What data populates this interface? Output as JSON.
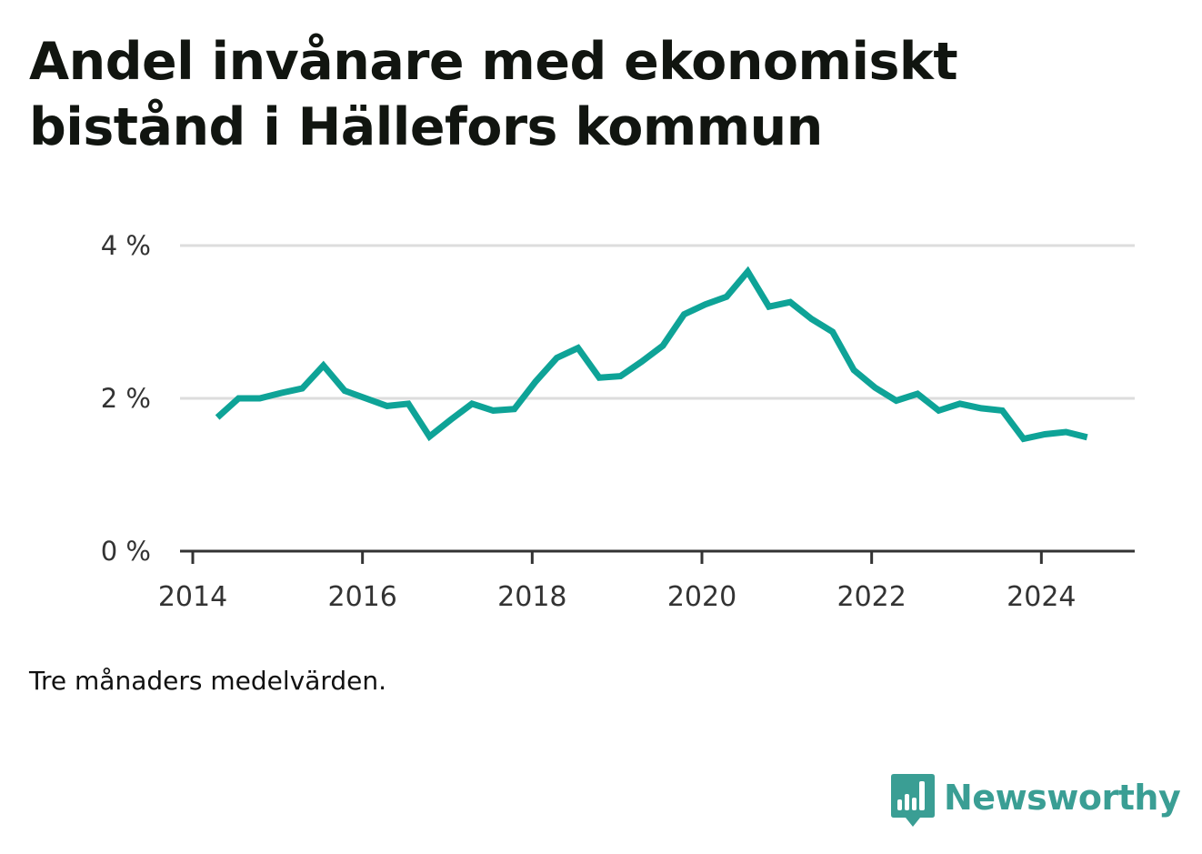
{
  "title": "Andel invånare med ekonomiskt bistånd i Hällefors kommun",
  "note": "Tre månaders medelvärden.",
  "brand": {
    "name": "Newsworthy",
    "icon": "bar-chart-speech-bubble-icon",
    "color": "#3a9e94"
  },
  "chart_data": {
    "type": "line",
    "line_color": "#0ea397",
    "grid": true,
    "x_unit": "year",
    "xlim": [
      2013.85,
      2025.1
    ],
    "ylim": [
      0,
      4
    ],
    "x_ticks": [
      2014,
      2016,
      2018,
      2020,
      2022,
      2024
    ],
    "x_tick_labels": [
      "2014",
      "2016",
      "2018",
      "2020",
      "2022",
      "2024"
    ],
    "y_ticks": [
      0,
      2,
      4
    ],
    "y_tick_labels": [
      "0 %",
      "2 %",
      "4 %"
    ],
    "series": [
      {
        "x": [
          2014.29,
          2014.54,
          2014.79,
          2015.04,
          2015.29,
          2015.54,
          2015.79,
          2016.04,
          2016.29,
          2016.54,
          2016.79,
          2017.04,
          2017.29,
          2017.54,
          2017.79,
          2018.04,
          2018.29,
          2018.54,
          2018.79,
          2019.04,
          2019.29,
          2019.54,
          2019.79,
          2020.04,
          2020.29,
          2020.54,
          2020.79,
          2021.04,
          2021.29,
          2021.54,
          2021.79,
          2022.04,
          2022.29,
          2022.54,
          2022.79,
          2023.04,
          2023.29,
          2023.54,
          2023.79,
          2024.04,
          2024.29,
          2024.54
        ],
        "y": [
          1.75,
          2.0,
          2.0,
          2.07,
          2.13,
          2.43,
          2.1,
          2.0,
          1.9,
          1.93,
          1.5,
          1.72,
          1.93,
          1.84,
          1.86,
          2.22,
          2.53,
          2.66,
          2.27,
          2.29,
          2.48,
          2.69,
          3.1,
          3.23,
          3.33,
          3.66,
          3.2,
          3.26,
          3.04,
          2.87,
          2.37,
          2.14,
          1.97,
          2.06,
          1.84,
          1.93,
          1.87,
          1.84,
          1.47,
          1.53,
          1.56,
          1.49
        ]
      }
    ]
  }
}
